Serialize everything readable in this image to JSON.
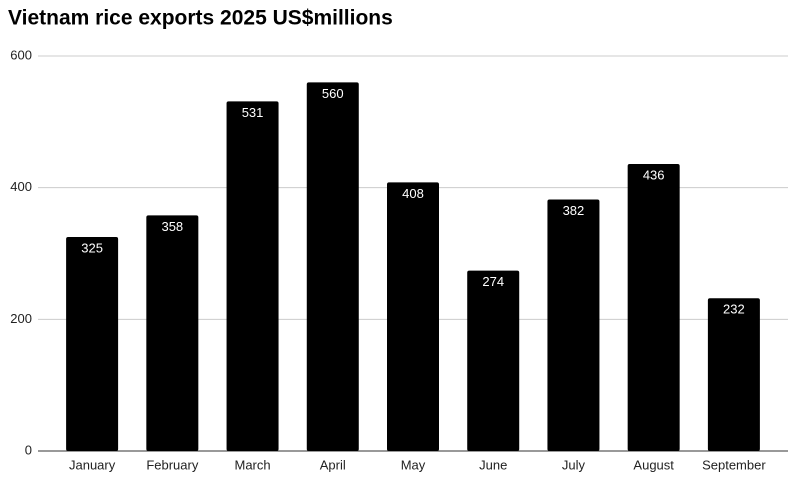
{
  "chart_data": {
    "type": "bar",
    "title": "Vietnam rice exports 2025 US$millions",
    "categories": [
      "January",
      "February",
      "March",
      "April",
      "May",
      "June",
      "July",
      "August",
      "September"
    ],
    "values": [
      325,
      358,
      531,
      560,
      408,
      274,
      382,
      436,
      232
    ],
    "color": "#000000",
    "ylim": [
      0,
      600
    ],
    "yticks": [
      0,
      200,
      400,
      600
    ],
    "grid": true
  }
}
